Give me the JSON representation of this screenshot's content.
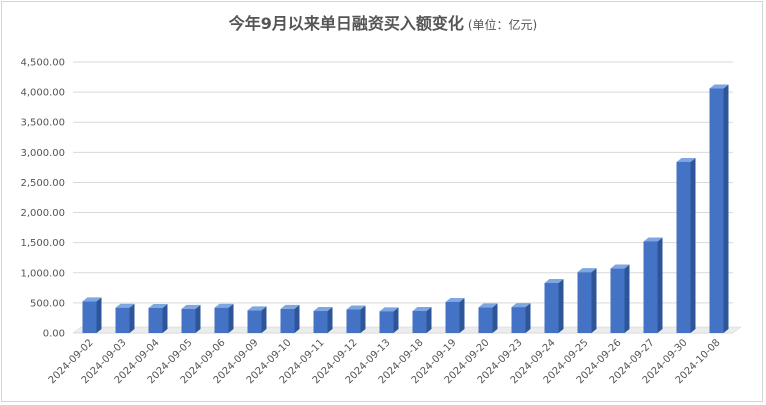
{
  "chart_data": {
    "type": "bar",
    "title": "今年9月以来单日融资买入额变化",
    "subtitle": "(单位：亿元)",
    "xlabel": "",
    "ylabel": "",
    "ylim": [
      0,
      4500
    ],
    "y_ticks": [
      "0.00",
      "500.00",
      "1,000.00",
      "1,500.00",
      "2,000.00",
      "2,500.00",
      "3,000.00",
      "3,500.00",
      "4,000.00",
      "4,500.00"
    ],
    "grid": true,
    "legend": "none",
    "bar_color": "#4472c4",
    "categories": [
      "2024-09-02",
      "2024-09-03",
      "2024-09-04",
      "2024-09-05",
      "2024-09-06",
      "2024-09-09",
      "2024-09-10",
      "2024-09-11",
      "2024-09-12",
      "2024-09-13",
      "2024-09-18",
      "2024-09-19",
      "2024-09-20",
      "2024-09-23",
      "2024-09-24",
      "2024-09-25",
      "2024-09-26",
      "2024-09-27",
      "2024-09-30",
      "2024-10-08"
    ],
    "values": [
      525,
      420,
      415,
      400,
      420,
      375,
      400,
      365,
      390,
      360,
      365,
      515,
      425,
      430,
      830,
      1010,
      1070,
      1520,
      2840,
      4060
    ]
  }
}
